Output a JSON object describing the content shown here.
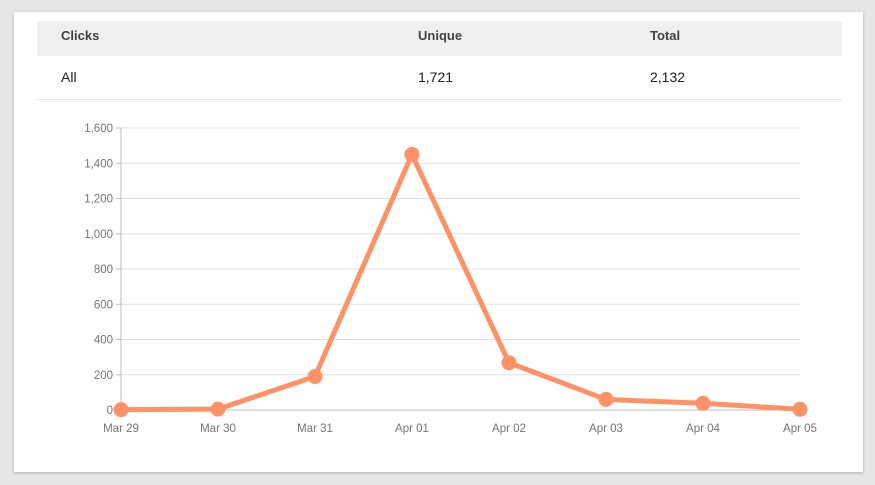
{
  "table": {
    "headers": [
      "Clicks",
      "Unique",
      "Total"
    ],
    "rows": [
      {
        "label": "All",
        "unique": "1,721",
        "total": "2,132"
      }
    ]
  },
  "colors": {
    "line": "#ff9166",
    "grid": "#e0e0e0",
    "axis": "#bdbdbd",
    "header_bg": "#f0f0f0"
  },
  "chart_data": {
    "type": "line",
    "title": "",
    "xlabel": "",
    "ylabel": "",
    "categories": [
      "Mar 29",
      "Mar 30",
      "Mar 31",
      "Apr 01",
      "Apr 02",
      "Apr 03",
      "Apr 04",
      "Apr 05"
    ],
    "series": [
      {
        "values": [
          2,
          5,
          190,
          1450,
          268,
          60,
          38,
          4
        ]
      }
    ],
    "ylim": [
      0,
      1600
    ],
    "yticks": [
      "0",
      "200",
      "400",
      "600",
      "800",
      "1,000",
      "1,200",
      "1,400",
      "1,600"
    ],
    "grid": true,
    "legend": "none"
  }
}
